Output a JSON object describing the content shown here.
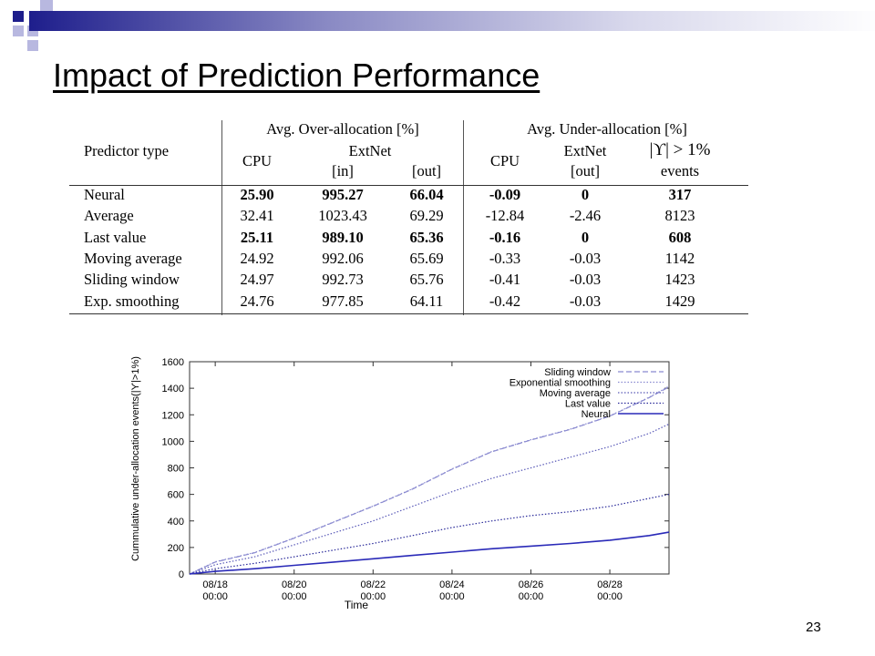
{
  "slide": {
    "title": "Impact of Prediction Performance",
    "page_number": "23"
  },
  "table": {
    "header_groups": [
      "Avg. Over-allocation [%]",
      "Avg. Under-allocation [%]"
    ],
    "header_predictor": "Predictor type",
    "h_cpu1": "CPU",
    "h_extnet1": "ExtNet",
    "h_in": "[in]",
    "h_out1": "[out]",
    "h_cpu2": "CPU",
    "h_extnet2": "ExtNet",
    "h_out2": "[out]",
    "h_upsilon": "|ϒ| > 1%",
    "h_events": "events",
    "rows": [
      {
        "name": "Neural",
        "cpu": "25.90",
        "in": "995.27",
        "out": "66.04",
        "ucpu": "-0.09",
        "uout": "0",
        "events": "317",
        "bold": [
          true,
          true,
          true,
          true,
          true,
          true
        ]
      },
      {
        "name": "Average",
        "cpu": "32.41",
        "in": "1023.43",
        "out": "69.29",
        "ucpu": "-12.84",
        "uout": "-2.46",
        "events": "8123",
        "bold": [
          false,
          false,
          false,
          false,
          false,
          false
        ]
      },
      {
        "name": "Last value",
        "cpu": "25.11",
        "in": "989.10",
        "out": "65.36",
        "ucpu": "-0.16",
        "uout": "0",
        "events": "608",
        "bold": [
          true,
          true,
          true,
          true,
          true,
          true
        ]
      },
      {
        "name": "Moving average",
        "cpu": "24.92",
        "in": "992.06",
        "out": "65.69",
        "ucpu": "-0.33",
        "uout": "-0.03",
        "events": "1142",
        "bold": [
          false,
          false,
          false,
          false,
          false,
          false
        ]
      },
      {
        "name": "Sliding window",
        "cpu": "24.97",
        "in": "992.73",
        "out": "65.76",
        "ucpu": "-0.41",
        "uout": "-0.03",
        "events": "1423",
        "bold": [
          false,
          false,
          false,
          false,
          false,
          false
        ]
      },
      {
        "name": "Exp. smoothing",
        "cpu": "24.76",
        "in": "977.85",
        "out": "64.11",
        "ucpu": "-0.42",
        "uout": "-0.03",
        "events": "1429",
        "bold": [
          false,
          false,
          false,
          false,
          false,
          false
        ]
      }
    ]
  },
  "chart_data": {
    "type": "line",
    "title": "",
    "xlabel": "Time",
    "ylabel": "Cummulative under-allocation events(|ϒ|>1%)",
    "ylim": [
      0,
      1600
    ],
    "yticks": [
      0,
      200,
      400,
      600,
      800,
      1000,
      1200,
      1400,
      1600
    ],
    "xticks": [
      "08/18\n00:00",
      "08/20\n00:00",
      "08/22\n00:00",
      "08/24\n00:00",
      "08/26\n00:00",
      "08/28\n00:00"
    ],
    "xlim_days": [
      17.35,
      29.5
    ],
    "legend_position": "top-right",
    "series": [
      {
        "name": "Sliding window",
        "style": "dashed",
        "color": "#8a8ad0",
        "points": [
          [
            17.35,
            0
          ],
          [
            18,
            90
          ],
          [
            19,
            160
          ],
          [
            20,
            270
          ],
          [
            21,
            390
          ],
          [
            22,
            510
          ],
          [
            23,
            640
          ],
          [
            24,
            790
          ],
          [
            25,
            920
          ],
          [
            26,
            1010
          ],
          [
            27,
            1090
          ],
          [
            28,
            1190
          ],
          [
            29,
            1330
          ],
          [
            29.5,
            1410
          ]
        ]
      },
      {
        "name": "Exponential smoothing",
        "style": "dotted",
        "color": "#8a8ad0",
        "points": [
          [
            17.35,
            0
          ],
          [
            18,
            92
          ],
          [
            19,
            162
          ],
          [
            20,
            272
          ],
          [
            21,
            392
          ],
          [
            22,
            512
          ],
          [
            23,
            642
          ],
          [
            24,
            792
          ],
          [
            25,
            922
          ],
          [
            26,
            1012
          ],
          [
            27,
            1092
          ],
          [
            28,
            1192
          ],
          [
            29,
            1332
          ],
          [
            29.5,
            1415
          ]
        ]
      },
      {
        "name": "Moving average",
        "style": "dotted",
        "color": "#5a5ab8",
        "points": [
          [
            17.35,
            0
          ],
          [
            18,
            70
          ],
          [
            19,
            130
          ],
          [
            20,
            220
          ],
          [
            21,
            310
          ],
          [
            22,
            400
          ],
          [
            23,
            510
          ],
          [
            24,
            620
          ],
          [
            25,
            720
          ],
          [
            26,
            800
          ],
          [
            27,
            880
          ],
          [
            28,
            960
          ],
          [
            29,
            1060
          ],
          [
            29.5,
            1130
          ]
        ]
      },
      {
        "name": "Last value",
        "style": "dotted",
        "color": "#2a2a9a",
        "points": [
          [
            17.35,
            0
          ],
          [
            18,
            40
          ],
          [
            19,
            80
          ],
          [
            20,
            130
          ],
          [
            21,
            180
          ],
          [
            22,
            230
          ],
          [
            23,
            290
          ],
          [
            24,
            350
          ],
          [
            25,
            400
          ],
          [
            26,
            440
          ],
          [
            27,
            470
          ],
          [
            28,
            510
          ],
          [
            29,
            570
          ],
          [
            29.5,
            600
          ]
        ]
      },
      {
        "name": "Neural",
        "style": "solid",
        "color": "#2a2ab8",
        "points": [
          [
            17.35,
            0
          ],
          [
            18,
            20
          ],
          [
            19,
            40
          ],
          [
            20,
            65
          ],
          [
            21,
            90
          ],
          [
            22,
            115
          ],
          [
            23,
            140
          ],
          [
            24,
            165
          ],
          [
            25,
            190
          ],
          [
            26,
            210
          ],
          [
            27,
            230
          ],
          [
            28,
            255
          ],
          [
            29,
            290
          ],
          [
            29.5,
            315
          ]
        ]
      }
    ]
  },
  "colors": {
    "accent_dark": "#1e1e8c",
    "accent_light": "#b8b8e0"
  }
}
